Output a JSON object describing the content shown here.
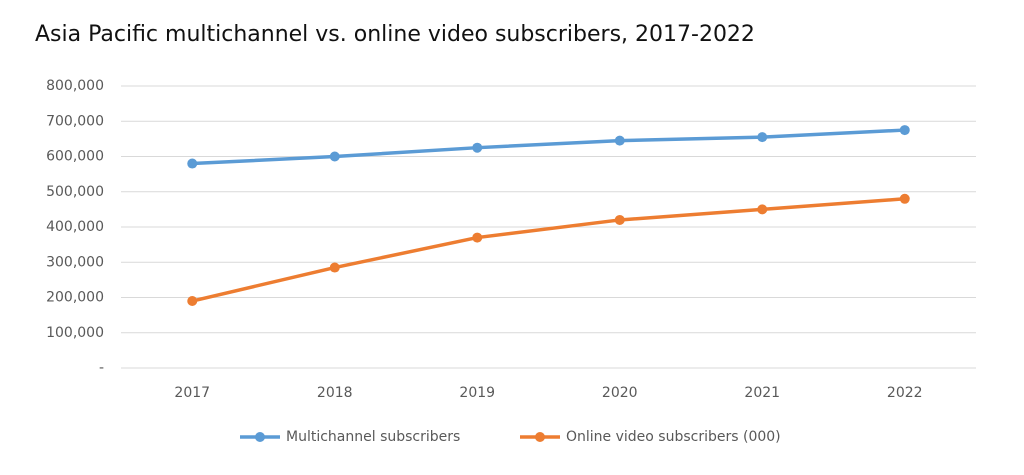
{
  "chart_data": {
    "type": "line",
    "title": "Asia Pacific multichannel vs. online video subscribers, 2017-2022",
    "categories": [
      "2017",
      "2018",
      "2019",
      "2020",
      "2021",
      "2022"
    ],
    "series": [
      {
        "name": "Multichannel subscribers",
        "color": "#5b9bd5",
        "values": [
          580000,
          600000,
          625000,
          645000,
          655000,
          675000
        ]
      },
      {
        "name": "Online video subscribers (000)",
        "color": "#ed7d31",
        "values": [
          190000,
          285000,
          370000,
          420000,
          450000,
          480000
        ]
      }
    ],
    "ylim": [
      0,
      800000
    ],
    "yticks": [
      {
        "value": 0,
        "label": "-"
      },
      {
        "value": 100000,
        "label": "100,000"
      },
      {
        "value": 200000,
        "label": "200,000"
      },
      {
        "value": 300000,
        "label": "300,000"
      },
      {
        "value": 400000,
        "label": "400,000"
      },
      {
        "value": 500000,
        "label": "500,000"
      },
      {
        "value": 600000,
        "label": "600,000"
      },
      {
        "value": 700000,
        "label": "700,000"
      },
      {
        "value": 800000,
        "label": "800,000"
      }
    ],
    "grid": true,
    "legend": "bottom"
  }
}
